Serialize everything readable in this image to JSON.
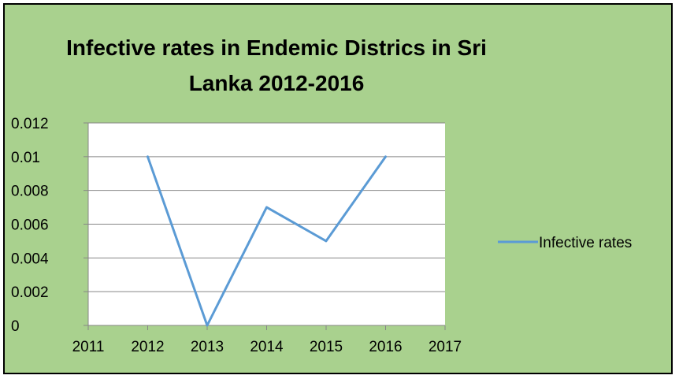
{
  "chart_data": {
    "type": "line",
    "title_lines": [
      "Infective rates in Endemic Districs in Sri",
      "Lanka 2012-2016"
    ],
    "x": [
      2012,
      2013,
      2014,
      2015,
      2016
    ],
    "series": [
      {
        "name": "Infective rates",
        "values": [
          0.01,
          0,
          0.007,
          0.005,
          0.01
        ]
      }
    ],
    "xlim": [
      2011,
      2017
    ],
    "ylim": [
      0,
      0.012
    ],
    "x_ticks": [
      "2011",
      "2012",
      "2013",
      "2014",
      "2015",
      "2016",
      "2017"
    ],
    "y_ticks": [
      "0",
      "0.002",
      "0.004",
      "0.006",
      "0.008",
      "0.01",
      "0.012"
    ],
    "grid": "horizontal",
    "legend_position": "right",
    "colors": {
      "background": "#a9d18e",
      "plot_area": "#ffffff",
      "series_line": "#5b9bd5",
      "gridline": "#868686"
    }
  }
}
